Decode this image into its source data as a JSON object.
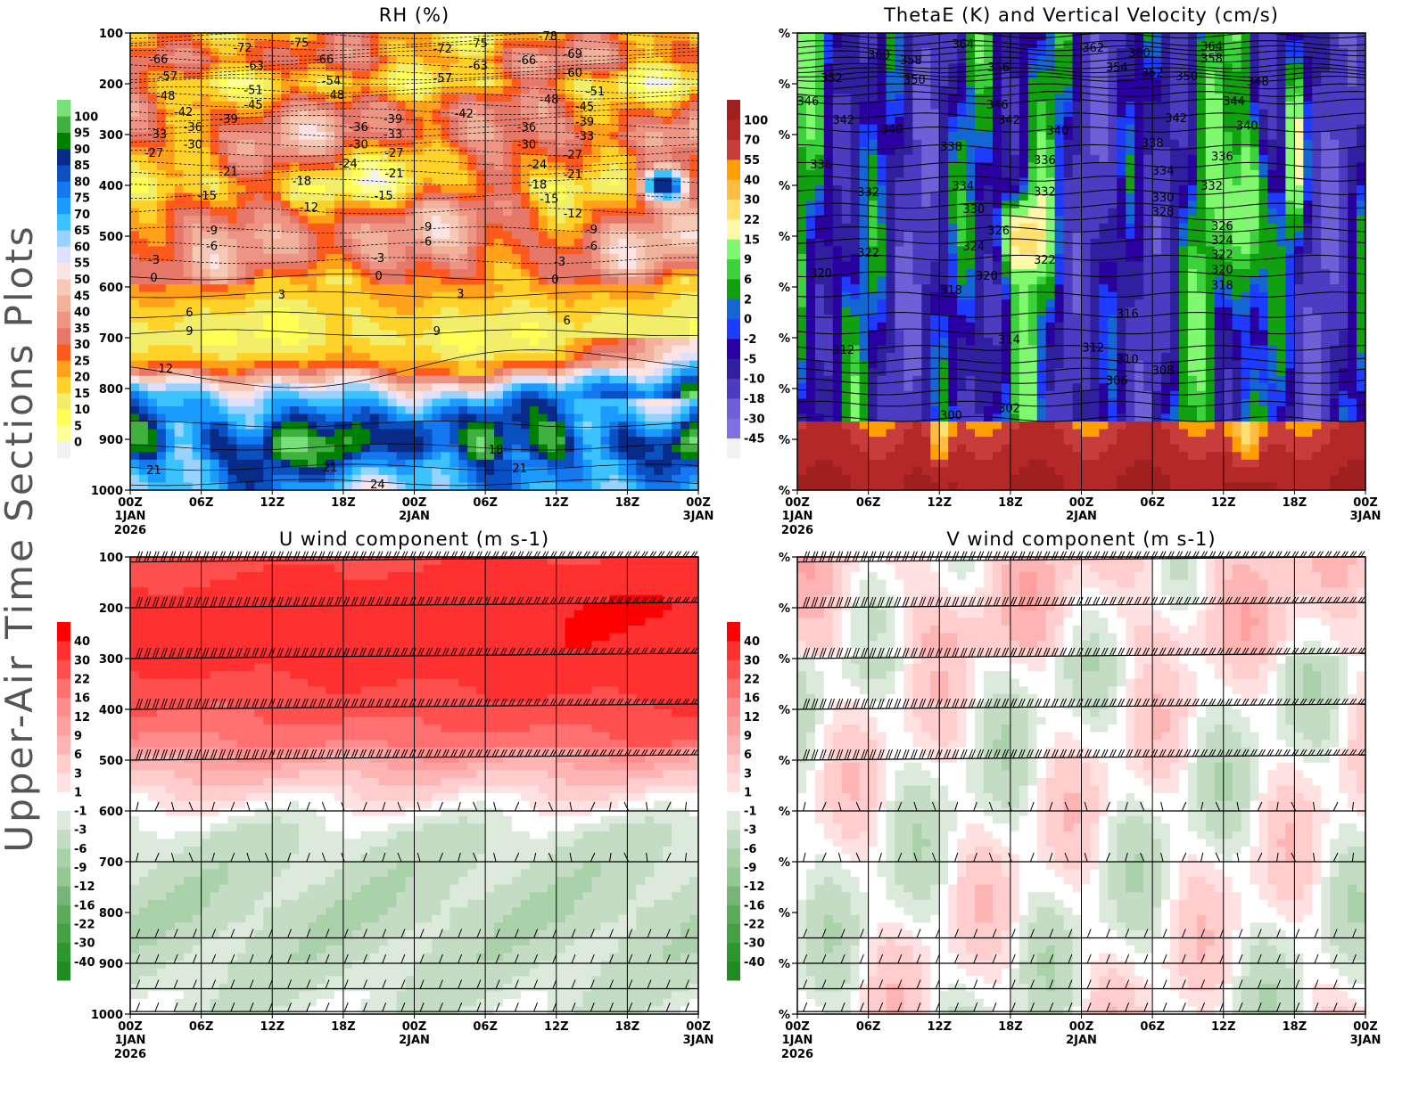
{
  "page_title": "Upper-Air Time Sections Plots",
  "x_axis": {
    "ticks": [
      "00Z",
      "06Z",
      "12Z",
      "18Z",
      "00Z",
      "06Z",
      "12Z",
      "18Z",
      "00Z"
    ],
    "tick_hours": [
      0,
      6,
      12,
      18,
      24,
      30,
      36,
      42,
      48
    ],
    "date_labels": [
      {
        "hour": 0,
        "text": "1JAN"
      },
      {
        "hour": 24,
        "text": "2JAN"
      },
      {
        "hour": 48,
        "text": "3JAN"
      }
    ],
    "year": "2026"
  },
  "chart_data": [
    {
      "type": "heatmap",
      "title": "RH (%)",
      "y_ticks": [
        "100",
        "200",
        "300",
        "400",
        "500",
        "600",
        "700",
        "800",
        "900",
        "1000"
      ],
      "y_tick_values": [
        100,
        200,
        300,
        400,
        500,
        600,
        700,
        800,
        900,
        1000
      ],
      "ylim": [
        1000,
        100
      ],
      "xlim": [
        0,
        48
      ],
      "colorbar_levels": [
        0,
        5,
        10,
        15,
        20,
        25,
        30,
        35,
        40,
        45,
        50,
        55,
        60,
        65,
        70,
        75,
        80,
        85,
        90,
        95,
        100
      ],
      "colorbar_labels": [
        "0",
        "5",
        "10",
        "15",
        "20",
        "25",
        "30",
        "35",
        "40",
        "45",
        "50",
        "55",
        "60",
        "65",
        "70",
        "75",
        "80",
        "85",
        "90",
        "95",
        "100"
      ],
      "colors": [
        "#f2f2f2",
        "#ffff99",
        "#ffff55",
        "#f2ee6a",
        "#ffd22a",
        "#ffa11a",
        "#ff5a1e",
        "#e6786a",
        "#ee9484",
        "#f0b29a",
        "#f6c8b6",
        "#fde4e4",
        "#dde0ff",
        "#9ad2ff",
        "#3cc2ff",
        "#1a9cff",
        "#1478f0",
        "#0a50c0",
        "#082a88",
        "#008000",
        "#40b040",
        "#78e078"
      ],
      "contour_field": "temperature",
      "contour_labels": [
        [
          "-66",
          2.4,
          151
        ],
        [
          "-72",
          9.5,
          128
        ],
        [
          "-75",
          14.3,
          118
        ],
        [
          "-63",
          10.5,
          163
        ],
        [
          "-57",
          3.2,
          184
        ],
        [
          "-48",
          3.0,
          223
        ],
        [
          "-51",
          10.4,
          211
        ],
        [
          "-45",
          10.4,
          240
        ],
        [
          "-42",
          4.5,
          254
        ],
        [
          "-39",
          8.3,
          268
        ],
        [
          "-36",
          5.3,
          284
        ],
        [
          "-33",
          2.3,
          298
        ],
        [
          "-30",
          5.3,
          318
        ],
        [
          "-27",
          2.0,
          335
        ],
        [
          "-21",
          8.3,
          372
        ],
        [
          "-18",
          14.5,
          390
        ],
        [
          "-15",
          6.5,
          419
        ],
        [
          "-12",
          15.1,
          442
        ],
        [
          "-9",
          6.9,
          488
        ],
        [
          "-6",
          6.9,
          518
        ],
        [
          "-3",
          2.0,
          546
        ],
        [
          "0",
          2.0,
          581
        ],
        [
          "3",
          12.8,
          614
        ],
        [
          "6",
          5.0,
          649
        ],
        [
          "9",
          5.0,
          686
        ],
        [
          "12",
          3.0,
          760
        ],
        [
          "21",
          2.0,
          960
        ],
        [
          "21",
          16.9,
          954
        ],
        [
          "24",
          20.9,
          988
        ],
        [
          "-66",
          16.4,
          151
        ],
        [
          "-54",
          17.0,
          193
        ],
        [
          "-48",
          17.3,
          221
        ],
        [
          "-36",
          19.3,
          284
        ],
        [
          "-39",
          22.2,
          268
        ],
        [
          "-33",
          22.2,
          298
        ],
        [
          "-30",
          19.3,
          318
        ],
        [
          "-27",
          22.3,
          335
        ],
        [
          "-24",
          18.4,
          356
        ],
        [
          "-21",
          22.3,
          375
        ],
        [
          "-15",
          21.4,
          419
        ],
        [
          "-3",
          21.0,
          542
        ],
        [
          "0",
          21.0,
          577
        ],
        [
          "-72",
          26.4,
          130
        ],
        [
          "-75",
          29.4,
          119
        ],
        [
          "-63",
          29.4,
          163
        ],
        [
          "-57",
          26.4,
          188
        ],
        [
          "-42",
          28.2,
          258
        ],
        [
          "-9",
          25.0,
          481
        ],
        [
          "-6",
          25.0,
          510
        ],
        [
          "3",
          27.9,
          612
        ],
        [
          "9",
          25.9,
          686
        ],
        [
          "-36",
          33.5,
          284
        ],
        [
          "-30",
          33.5,
          318
        ],
        [
          "-24",
          34.4,
          358
        ],
        [
          "-18",
          34.4,
          397
        ],
        [
          "-15",
          35.4,
          425
        ],
        [
          "-66",
          33.5,
          153
        ],
        [
          "-48",
          35.4,
          230
        ],
        [
          "-78",
          35.3,
          105
        ],
        [
          "-69",
          37.4,
          140
        ],
        [
          "-60",
          37.4,
          177
        ],
        [
          "-51",
          39.3,
          214
        ],
        [
          "-45",
          38.4,
          244
        ],
        [
          "-39",
          38.4,
          274
        ],
        [
          "-33",
          38.4,
          302
        ],
        [
          "-27",
          37.4,
          339
        ],
        [
          "-21",
          37.4,
          377
        ],
        [
          "-12",
          37.4,
          454
        ],
        [
          "-9",
          39.0,
          486
        ],
        [
          "-6",
          39.0,
          518
        ],
        [
          "-3",
          36.3,
          549
        ],
        [
          "0",
          35.9,
          584
        ],
        [
          "6",
          36.9,
          665
        ],
        [
          "18",
          30.9,
          919
        ],
        [
          "21",
          32.9,
          956
        ]
      ]
    },
    {
      "type": "heatmap",
      "title": "ThetaE (K) and Vertical Velocity (cm/s)",
      "y_ticks": [
        "%",
        "%",
        "%",
        "%",
        "%",
        "%",
        "%",
        "%",
        "%",
        "%"
      ],
      "y_tick_values": [
        100,
        200,
        300,
        400,
        500,
        600,
        700,
        800,
        900,
        1000
      ],
      "ylim": [
        1000,
        100
      ],
      "xlim": [
        0,
        48
      ],
      "colorbar_levels": [
        -45,
        -30,
        -18,
        -10,
        -5,
        -2,
        0,
        2,
        6,
        9,
        15,
        22,
        30,
        40,
        55,
        70,
        100
      ],
      "colorbar_labels": [
        "-45",
        "-30",
        "-18",
        "-10",
        "-5",
        "-2",
        "0",
        "2",
        "6",
        "9",
        "15",
        "22",
        "30",
        "40",
        "55",
        "70",
        "100"
      ],
      "colors": [
        "#f2f2f2",
        "#8070e4",
        "#7060d8",
        "#4c3cc2",
        "#3020a0",
        "#2a00a0",
        "#1e3cff",
        "#1466d2",
        "#10a010",
        "#3cd23c",
        "#80f870",
        "#fff8a8",
        "#ffe070",
        "#ffbc40",
        "#ffa000",
        "#c83c3c",
        "#b42828",
        "#a02020"
      ],
      "contour_field": "ThetaE",
      "contour_labels": [
        [
          "364",
          14.0,
          121
        ],
        [
          "360",
          6.9,
          142
        ],
        [
          "358",
          9.6,
          153
        ],
        [
          "350",
          9.9,
          191
        ],
        [
          "352",
          2.9,
          188
        ],
        [
          "346",
          0.9,
          233
        ],
        [
          "342",
          3.9,
          270
        ],
        [
          "340",
          8.0,
          289
        ],
        [
          "336",
          2.0,
          358
        ],
        [
          "332",
          6.0,
          412
        ],
        [
          "322",
          6.0,
          532
        ],
        [
          "320",
          2.0,
          572
        ],
        [
          "312",
          3.9,
          723
        ],
        [
          "338",
          13.0,
          323
        ],
        [
          "334",
          14.0,
          400
        ],
        [
          "330",
          14.9,
          446
        ],
        [
          "326",
          17.0,
          488
        ],
        [
          "324",
          14.9,
          519
        ],
        [
          "320",
          16.0,
          577
        ],
        [
          "318",
          13.0,
          605
        ],
        [
          "314",
          17.9,
          703
        ],
        [
          "302",
          17.9,
          838
        ],
        [
          "300",
          13.0,
          852
        ],
        [
          "356",
          17.0,
          167
        ],
        [
          "346",
          16.9,
          240
        ],
        [
          "342",
          17.9,
          270
        ],
        [
          "336",
          20.9,
          349
        ],
        [
          "332",
          20.9,
          411
        ],
        [
          "322",
          20.9,
          546
        ],
        [
          "340",
          22.0,
          291
        ],
        [
          "362",
          25.0,
          128
        ],
        [
          "360",
          28.9,
          139
        ],
        [
          "354",
          27.0,
          167
        ],
        [
          "352",
          30.0,
          177
        ],
        [
          "350",
          32.9,
          184
        ],
        [
          "348",
          38.9,
          195
        ],
        [
          "364",
          35.0,
          125
        ],
        [
          "358",
          35.0,
          149
        ],
        [
          "344",
          36.9,
          233
        ],
        [
          "342",
          32.0,
          267
        ],
        [
          "340",
          38.0,
          282
        ],
        [
          "338",
          30.0,
          316
        ],
        [
          "336",
          35.9,
          342
        ],
        [
          "334",
          30.9,
          370
        ],
        [
          "332",
          35.0,
          400
        ],
        [
          "330",
          30.9,
          423
        ],
        [
          "328",
          30.9,
          451
        ],
        [
          "326",
          35.9,
          479
        ],
        [
          "324",
          35.9,
          507
        ],
        [
          "322",
          35.9,
          535
        ],
        [
          "320",
          35.9,
          565
        ],
        [
          "318",
          35.9,
          596
        ],
        [
          "316",
          27.9,
          652
        ],
        [
          "312",
          25.0,
          718
        ],
        [
          "310",
          27.9,
          741
        ],
        [
          "308",
          30.9,
          763
        ],
        [
          "306",
          27.0,
          783
        ]
      ]
    },
    {
      "type": "heatmap",
      "title": "U wind component (m s-1)",
      "y_ticks": [
        "100",
        "200",
        "300",
        "400",
        "500",
        "600",
        "700",
        "800",
        "900",
        "1000"
      ],
      "y_tick_values": [
        100,
        200,
        300,
        400,
        500,
        600,
        700,
        800,
        900,
        1000
      ],
      "ylim": [
        1000,
        100
      ],
      "xlim": [
        0,
        48
      ],
      "colorbar_levels": [
        -40,
        -30,
        -22,
        -16,
        -12,
        -9,
        -6,
        -3,
        -1,
        1,
        3,
        6,
        9,
        12,
        16,
        22,
        30,
        40
      ],
      "colorbar_labels": [
        "-40",
        "-30",
        "-22",
        "-16",
        "-12",
        "-9",
        "-6",
        "-3",
        "-1",
        "1",
        "3",
        "6",
        "9",
        "12",
        "16",
        "22",
        "30",
        "40"
      ],
      "colors": [
        "#1e8c1e",
        "#2d962d",
        "#46a046",
        "#5aaa5a",
        "#78b478",
        "#96c896",
        "#aad2aa",
        "#c3dcc3",
        "#dceadc",
        "#ffffff",
        "#ffe1e1",
        "#ffcdcd",
        "#ffb4b4",
        "#ffa0a0",
        "#ff8c8c",
        "#ff7070",
        "#ff5050",
        "#ff3030",
        "#ff0000"
      ],
      "wind_barbs": true
    },
    {
      "type": "heatmap",
      "title": "V wind component (m s-1)",
      "y_ticks": [
        "%",
        "%",
        "%",
        "%",
        "%",
        "%",
        "%",
        "%",
        "%",
        "%"
      ],
      "y_tick_values": [
        100,
        200,
        300,
        400,
        500,
        600,
        700,
        800,
        900,
        1000
      ],
      "ylim": [
        1000,
        100
      ],
      "xlim": [
        0,
        48
      ],
      "colorbar_levels": [
        -40,
        -30,
        -22,
        -16,
        -12,
        -9,
        -6,
        -3,
        -1,
        1,
        3,
        6,
        9,
        12,
        16,
        22,
        30,
        40
      ],
      "colorbar_labels": [
        "-40",
        "-30",
        "-22",
        "-16",
        "-12",
        "-9",
        "-6",
        "-3",
        "-1",
        "1",
        "3",
        "6",
        "9",
        "12",
        "16",
        "22",
        "30",
        "40"
      ],
      "colors": [
        "#1e8c1e",
        "#2d962d",
        "#46a046",
        "#5aaa5a",
        "#78b478",
        "#96c896",
        "#aad2aa",
        "#c3dcc3",
        "#dceadc",
        "#ffffff",
        "#ffe1e1",
        "#ffcdcd",
        "#ffb4b4",
        "#ffa0a0",
        "#ff8c8c",
        "#ff7070",
        "#ff5050",
        "#ff3030",
        "#ff0000"
      ],
      "wind_barbs": true
    }
  ]
}
